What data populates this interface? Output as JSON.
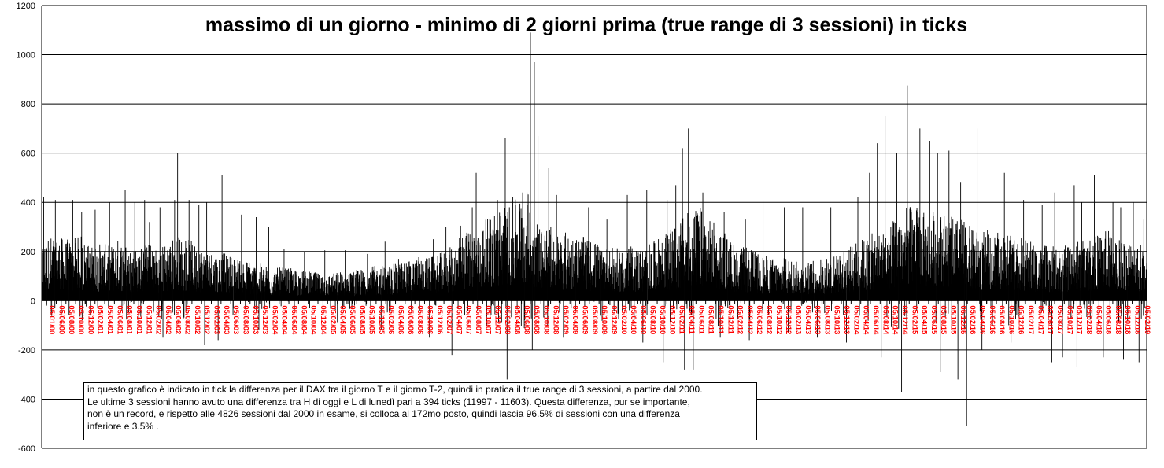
{
  "chart_data": {
    "type": "bar",
    "title": "massimo di un giorno - minimo di 2 giorni prima (true range di 3 sessioni)  in ticks",
    "xlabel": "",
    "ylabel": "",
    "ylim": [
      -600,
      1200
    ],
    "yticks": [
      -600,
      -400,
      -200,
      0,
      200,
      400,
      600,
      800,
      1000,
      1200
    ],
    "grid": true,
    "legend": "none",
    "bar_color": "#000000",
    "tick_label_color": "#ff0000",
    "sessions": 4826,
    "x_tick_labels": [
      "05/01/00",
      "05/06/00",
      "05/08/00",
      "05/10/00",
      "05/12/00",
      "05/02/01",
      "05/04/01",
      "05/06/01",
      "05/08/01",
      "05/10/01",
      "05/12/01",
      "05/02/02",
      "05/04/02",
      "05/06/02",
      "05/08/02",
      "05/10/02",
      "05/12/02",
      "05/02/03",
      "05/04/03",
      "05/06/03",
      "05/08/03",
      "05/10/03",
      "05/12/03",
      "05/02/04",
      "05/04/04",
      "05/06/04",
      "05/08/04",
      "05/10/04",
      "05/12/04",
      "05/02/05",
      "05/04/05",
      "05/06/05",
      "05/08/05",
      "05/10/05",
      "05/12/05",
      "05/02/06",
      "05/04/06",
      "05/06/06",
      "05/08/06",
      "05/10/06",
      "05/12/06",
      "05/02/07",
      "05/04/07",
      "05/06/07",
      "05/08/07",
      "05/10/07",
      "05/12/07",
      "05/02/08",
      "05/04/08",
      "05/06/08",
      "05/08/08",
      "05/10/08",
      "05/12/08",
      "05/02/09",
      "05/04/09",
      "05/06/09",
      "05/08/09",
      "05/10/09",
      "05/12/09",
      "05/02/10",
      "05/04/10",
      "05/06/10",
      "05/08/10",
      "05/10/10",
      "05/12/10",
      "05/02/11",
      "05/04/11",
      "05/06/11",
      "05/08/11",
      "05/10/11",
      "05/12/11",
      "05/02/12",
      "05/04/12",
      "05/06/12",
      "05/08/12",
      "05/10/12",
      "05/12/12",
      "05/02/13",
      "05/04/13",
      "05/06/13",
      "05/08/13",
      "05/10/13",
      "05/12/13",
      "05/02/14",
      "05/04/14",
      "05/06/14",
      "05/08/14",
      "05/10/14",
      "05/12/14",
      "05/02/15",
      "05/04/15",
      "05/06/15",
      "05/08/15",
      "05/10/15",
      "05/12/15",
      "05/02/16",
      "05/04/16",
      "05/06/16",
      "05/08/16",
      "05/10/16",
      "05/12/16",
      "05/02/17",
      "05/04/17",
      "05/06/17",
      "05/08/17",
      "05/10/17",
      "05/12/17",
      "05/02/18",
      "05/04/18",
      "05/06/18",
      "05/08/18",
      "05/10/18",
      "05/12/18",
      "05/02/19"
    ],
    "profile": [
      [
        0,
        110
      ],
      [
        1,
        120
      ],
      [
        2,
        115
      ],
      [
        3,
        110
      ],
      [
        4,
        120
      ],
      [
        5,
        100
      ],
      [
        6,
        105
      ],
      [
        7,
        100
      ],
      [
        8,
        115
      ],
      [
        9,
        100
      ],
      [
        10,
        105
      ],
      [
        11,
        105
      ],
      [
        12,
        95
      ],
      [
        13,
        110
      ],
      [
        14,
        120
      ],
      [
        15,
        115
      ],
      [
        16,
        100
      ],
      [
        17,
        95
      ],
      [
        18,
        90
      ],
      [
        19,
        85
      ],
      [
        20,
        80
      ],
      [
        21,
        75
      ],
      [
        22,
        70
      ],
      [
        23,
        65
      ],
      [
        24,
        60
      ],
      [
        25,
        60
      ],
      [
        26,
        58
      ],
      [
        27,
        55
      ],
      [
        28,
        52
      ],
      [
        29,
        50
      ],
      [
        30,
        50
      ],
      [
        31,
        55
      ],
      [
        32,
        55
      ],
      [
        33,
        58
      ],
      [
        34,
        62
      ],
      [
        35,
        65
      ],
      [
        36,
        65
      ],
      [
        37,
        70
      ],
      [
        38,
        75
      ],
      [
        39,
        80
      ],
      [
        40,
        80
      ],
      [
        41,
        85
      ],
      [
        42,
        95
      ],
      [
        43,
        115
      ],
      [
        44,
        130
      ],
      [
        45,
        135
      ],
      [
        46,
        150
      ],
      [
        47,
        170
      ],
      [
        48,
        175
      ],
      [
        49,
        185
      ],
      [
        50,
        205
      ],
      [
        51,
        150
      ],
      [
        52,
        140
      ],
      [
        53,
        135
      ],
      [
        54,
        125
      ],
      [
        55,
        120
      ],
      [
        56,
        115
      ],
      [
        57,
        110
      ],
      [
        58,
        100
      ],
      [
        59,
        95
      ],
      [
        60,
        95
      ],
      [
        61,
        100
      ],
      [
        62,
        100
      ],
      [
        63,
        105
      ],
      [
        64,
        120
      ],
      [
        65,
        130
      ],
      [
        66,
        150
      ],
      [
        67,
        165
      ],
      [
        68,
        170
      ],
      [
        69,
        145
      ],
      [
        70,
        140
      ],
      [
        71,
        110
      ],
      [
        72,
        100
      ],
      [
        73,
        95
      ],
      [
        74,
        85
      ],
      [
        75,
        80
      ],
      [
        76,
        75
      ],
      [
        77,
        80
      ],
      [
        78,
        70
      ],
      [
        79,
        70
      ],
      [
        80,
        75
      ],
      [
        81,
        80
      ],
      [
        82,
        85
      ],
      [
        83,
        90
      ],
      [
        84,
        110
      ],
      [
        85,
        115
      ],
      [
        86,
        125
      ],
      [
        87,
        130
      ],
      [
        88,
        150
      ],
      [
        89,
        170
      ],
      [
        90,
        175
      ],
      [
        91,
        160
      ],
      [
        92,
        165
      ],
      [
        93,
        160
      ],
      [
        94,
        150
      ],
      [
        95,
        150
      ],
      [
        96,
        130
      ],
      [
        97,
        125
      ],
      [
        98,
        130
      ],
      [
        99,
        120
      ],
      [
        100,
        130
      ],
      [
        101,
        115
      ],
      [
        102,
        110
      ],
      [
        103,
        100
      ],
      [
        104,
        100
      ],
      [
        105,
        95
      ],
      [
        106,
        105
      ],
      [
        107,
        110
      ],
      [
        108,
        115
      ],
      [
        109,
        120
      ],
      [
        110,
        130
      ],
      [
        111,
        120
      ],
      [
        112,
        115
      ],
      [
        113,
        110
      ],
      [
        114,
        100
      ]
    ],
    "spikes": [
      [
        0.2,
        420
      ],
      [
        1.4,
        410
      ],
      [
        3.2,
        410
      ],
      [
        4.1,
        360
      ],
      [
        5.5,
        370
      ],
      [
        7.0,
        400
      ],
      [
        8.6,
        450
      ],
      [
        9.6,
        400
      ],
      [
        10.6,
        410
      ],
      [
        11.1,
        320
      ],
      [
        12.2,
        380
      ],
      [
        13.7,
        410
      ],
      [
        14.0,
        600
      ],
      [
        15.2,
        410
      ],
      [
        16.2,
        390
      ],
      [
        17.0,
        400
      ],
      [
        18.6,
        510
      ],
      [
        19.1,
        480
      ],
      [
        20.6,
        350
      ],
      [
        22.1,
        340
      ],
      [
        23.4,
        300
      ],
      [
        25.0,
        210
      ],
      [
        27.1,
        200
      ],
      [
        29.2,
        205
      ],
      [
        31.3,
        205
      ],
      [
        33.6,
        190
      ],
      [
        35.4,
        240
      ],
      [
        36.8,
        170
      ],
      [
        38.6,
        210
      ],
      [
        40.4,
        250
      ],
      [
        41.7,
        300
      ],
      [
        43.2,
        305
      ],
      [
        44.4,
        380
      ],
      [
        44.8,
        520
      ],
      [
        46.2,
        330
      ],
      [
        47.0,
        410
      ],
      [
        47.8,
        660
      ],
      [
        48.6,
        420
      ],
      [
        49.6,
        440
      ],
      [
        50.4,
        1090
      ],
      [
        50.8,
        970
      ],
      [
        51.2,
        670
      ],
      [
        52.3,
        540
      ],
      [
        53.1,
        430
      ],
      [
        54.6,
        440
      ],
      [
        56.4,
        380
      ],
      [
        58.3,
        330
      ],
      [
        60.4,
        430
      ],
      [
        62.4,
        450
      ],
      [
        64.5,
        410
      ],
      [
        65.4,
        470
      ],
      [
        66.1,
        620
      ],
      [
        66.7,
        700
      ],
      [
        68.2,
        440
      ],
      [
        70.4,
        360
      ],
      [
        72.6,
        330
      ],
      [
        74.4,
        410
      ],
      [
        76.6,
        380
      ],
      [
        78.5,
        380
      ],
      [
        81.4,
        380
      ],
      [
        84.2,
        420
      ],
      [
        85.4,
        520
      ],
      [
        86.2,
        640
      ],
      [
        87.0,
        750
      ],
      [
        88.2,
        600
      ],
      [
        89.3,
        875
      ],
      [
        90.6,
        700
      ],
      [
        91.6,
        650
      ],
      [
        92.4,
        600
      ],
      [
        93.6,
        610
      ],
      [
        94.8,
        480
      ],
      [
        96.5,
        700
      ],
      [
        97.3,
        670
      ],
      [
        99.3,
        520
      ],
      [
        101.3,
        410
      ],
      [
        103.2,
        390
      ],
      [
        104.5,
        440
      ],
      [
        106.5,
        470
      ],
      [
        107.3,
        400
      ],
      [
        108.6,
        510
      ],
      [
        110.5,
        400
      ],
      [
        111.3,
        380
      ],
      [
        112.6,
        400
      ],
      [
        113.7,
        330
      ]
    ],
    "neg_spikes": [
      [
        0.5,
        -20
      ],
      [
        2.0,
        -60
      ],
      [
        5.0,
        -60
      ],
      [
        10.0,
        -90
      ],
      [
        12.5,
        -150
      ],
      [
        16.8,
        -180
      ],
      [
        18.2,
        -160
      ],
      [
        22.4,
        -120
      ],
      [
        26.0,
        -100
      ],
      [
        30.5,
        -90
      ],
      [
        35.0,
        -120
      ],
      [
        40.0,
        -150
      ],
      [
        42.3,
        -220
      ],
      [
        48.0,
        -320
      ],
      [
        50.6,
        -200
      ],
      [
        53.8,
        -150
      ],
      [
        58.0,
        -140
      ],
      [
        62.0,
        -170
      ],
      [
        64.1,
        -250
      ],
      [
        66.3,
        -280
      ],
      [
        67.2,
        -280
      ],
      [
        70.0,
        -150
      ],
      [
        73.0,
        -160
      ],
      [
        77.0,
        -130
      ],
      [
        80.0,
        -150
      ],
      [
        83.0,
        -170
      ],
      [
        86.6,
        -230
      ],
      [
        87.4,
        -230
      ],
      [
        88.7,
        -370
      ],
      [
        90.4,
        -260
      ],
      [
        92.7,
        -290
      ],
      [
        94.5,
        -320
      ],
      [
        95.4,
        -510
      ],
      [
        97.0,
        -200
      ],
      [
        100.0,
        -170
      ],
      [
        104.2,
        -250
      ],
      [
        105.3,
        -230
      ],
      [
        106.8,
        -270
      ],
      [
        109.5,
        -230
      ],
      [
        111.6,
        -240
      ],
      [
        113.2,
        -250
      ]
    ]
  },
  "note": {
    "lines": [
      "in questo grafico è indicato in tick la differenza per il DAX tra il giorno T e il giorno T-2, quindi in pratica il true range di 3 sessioni, a partire dal 2000.",
      "Le ultime 3 sessioni hanno avuto una differenza tra H di oggi e L di lunedì pari a 394 ticks (11997 - 11603).  Questa differenza, pur se importante,",
      "non è un record, e rispetto alle 4826 sessioni dal 2000 in esame, si colloca al 172mo posto, quindi lascia 96.5% di sessioni con una differenza",
      "inferiore e 3.5% ."
    ]
  }
}
